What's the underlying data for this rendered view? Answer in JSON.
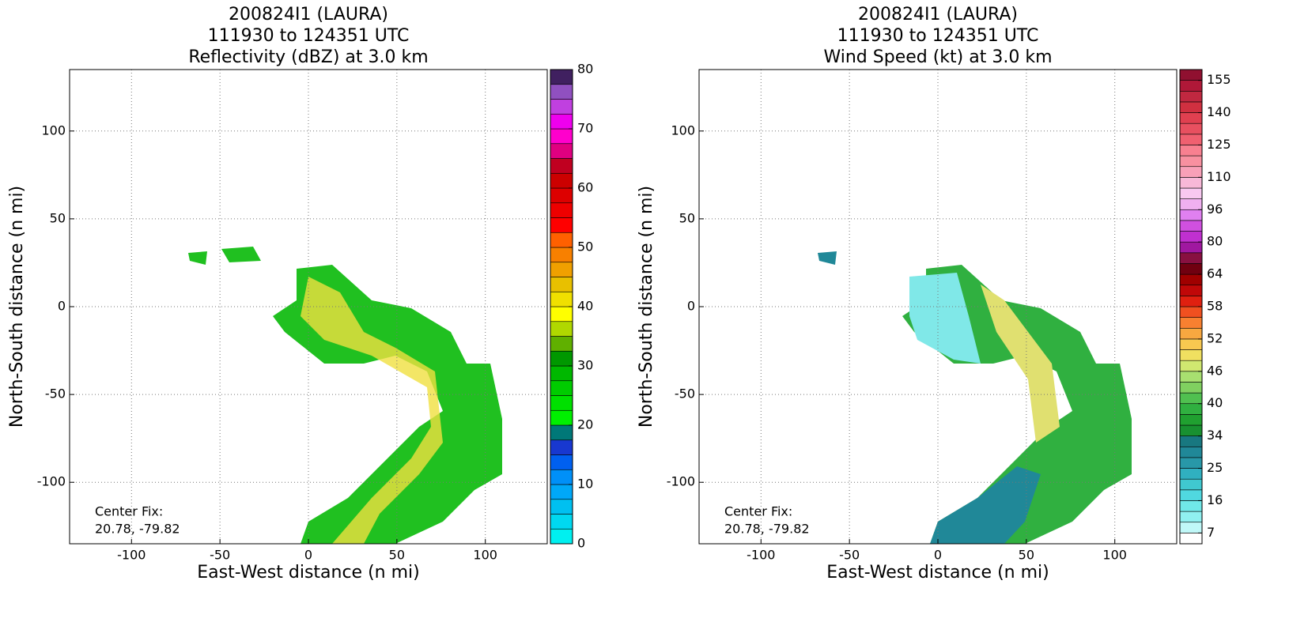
{
  "chart_data": [
    {
      "type": "heatmap",
      "title": [
        "200824I1 (LAURA)",
        "111930 to 124351 UTC",
        "Reflectivity (dBZ) at 3.0 km"
      ],
      "xlabel": "East-West distance (n mi)",
      "ylabel": "North-South distance (n mi)",
      "xlim": [
        -135,
        135
      ],
      "ylim": [
        -135,
        135
      ],
      "xticks": [
        -100,
        -50,
        0,
        50,
        100
      ],
      "yticks": [
        -100,
        -50,
        0,
        50,
        100
      ],
      "grid": true,
      "annotation": [
        "Center Fix:",
        "20.78, -79.82"
      ],
      "colorbar": {
        "bounds": [
          0,
          2.5,
          5,
          7.5,
          10,
          12.5,
          15,
          17.5,
          20,
          22.5,
          25,
          27.5,
          30,
          32.5,
          35,
          37.5,
          40,
          42.5,
          45,
          47.5,
          50,
          52.5,
          55,
          57.5,
          60,
          62.5,
          65,
          67.5,
          70,
          72.5,
          75,
          77.5,
          80
        ],
        "colors": [
          "#00f0f0",
          "#00d8f0",
          "#00c0f0",
          "#00a8f8",
          "#0090f8",
          "#0060f0",
          "#1838d0",
          "#007878",
          "#00f000",
          "#00e000",
          "#00cc00",
          "#00b800",
          "#009800",
          "#60b000",
          "#b0d800",
          "#ffff00",
          "#f0e000",
          "#e8c000",
          "#f0a000",
          "#f88000",
          "#ff6000",
          "#ff0000",
          "#ee0000",
          "#dd0000",
          "#cc0000",
          "#c00020",
          "#e00080",
          "#ff00cc",
          "#ee00ee",
          "#c040e0",
          "#9050c0",
          "#402060"
        ],
        "ticks": [
          0,
          10,
          20,
          30,
          40,
          50,
          60,
          70,
          80
        ]
      }
    },
    {
      "type": "heatmap",
      "title": [
        "200824I1 (LAURA)",
        "111930 to 124351 UTC",
        "Wind Speed (kt) at 3.0 km"
      ],
      "xlabel": "East-West distance (n mi)",
      "ylabel": "North-South distance (n mi)",
      "xlim": [
        -135,
        135
      ],
      "ylim": [
        -135,
        135
      ],
      "xticks": [
        -100,
        -50,
        0,
        50,
        100
      ],
      "yticks": [
        -100,
        -50,
        0,
        50,
        100
      ],
      "grid": true,
      "annotation": [
        "Center Fix:",
        "20.78, -79.82"
      ],
      "colorbar": {
        "bounds": [
          4,
          7,
          10,
          13,
          16,
          19,
          22,
          25,
          28,
          31,
          34,
          36,
          38,
          40,
          42,
          44,
          46,
          48,
          50,
          52,
          54,
          56,
          58,
          60,
          62,
          64,
          69,
          75,
          80,
          85,
          91,
          96,
          101,
          106,
          110,
          115,
          120,
          125,
          130,
          135,
          140,
          145,
          150,
          155,
          160
        ],
        "colors": [
          "#ffffff",
          "#c0f8f8",
          "#90f0f0",
          "#70e8e8",
          "#50d8e0",
          "#40c8d0",
          "#30b0c0",
          "#2898a8",
          "#208898",
          "#187880",
          "#189030",
          "#20a030",
          "#30b040",
          "#50c050",
          "#80d060",
          "#a8e070",
          "#d0e870",
          "#f0e060",
          "#f8c850",
          "#f8a840",
          "#f88030",
          "#f05020",
          "#e02010",
          "#c00808",
          "#a00000",
          "#700010",
          "#881040",
          "#a018a0",
          "#c030d0",
          "#d050e0",
          "#e080f0",
          "#f0b0f0",
          "#f8c8f0",
          "#f8b8d8",
          "#f8a0b8",
          "#f890a0",
          "#f88090",
          "#f06070",
          "#e85060",
          "#e04050",
          "#d03040",
          "#c02840",
          "#b01838",
          "#901030"
        ],
        "ticks": [
          7,
          16,
          25,
          34,
          40,
          46,
          52,
          58,
          64,
          80,
          96,
          110,
          125,
          140,
          155
        ]
      }
    }
  ]
}
